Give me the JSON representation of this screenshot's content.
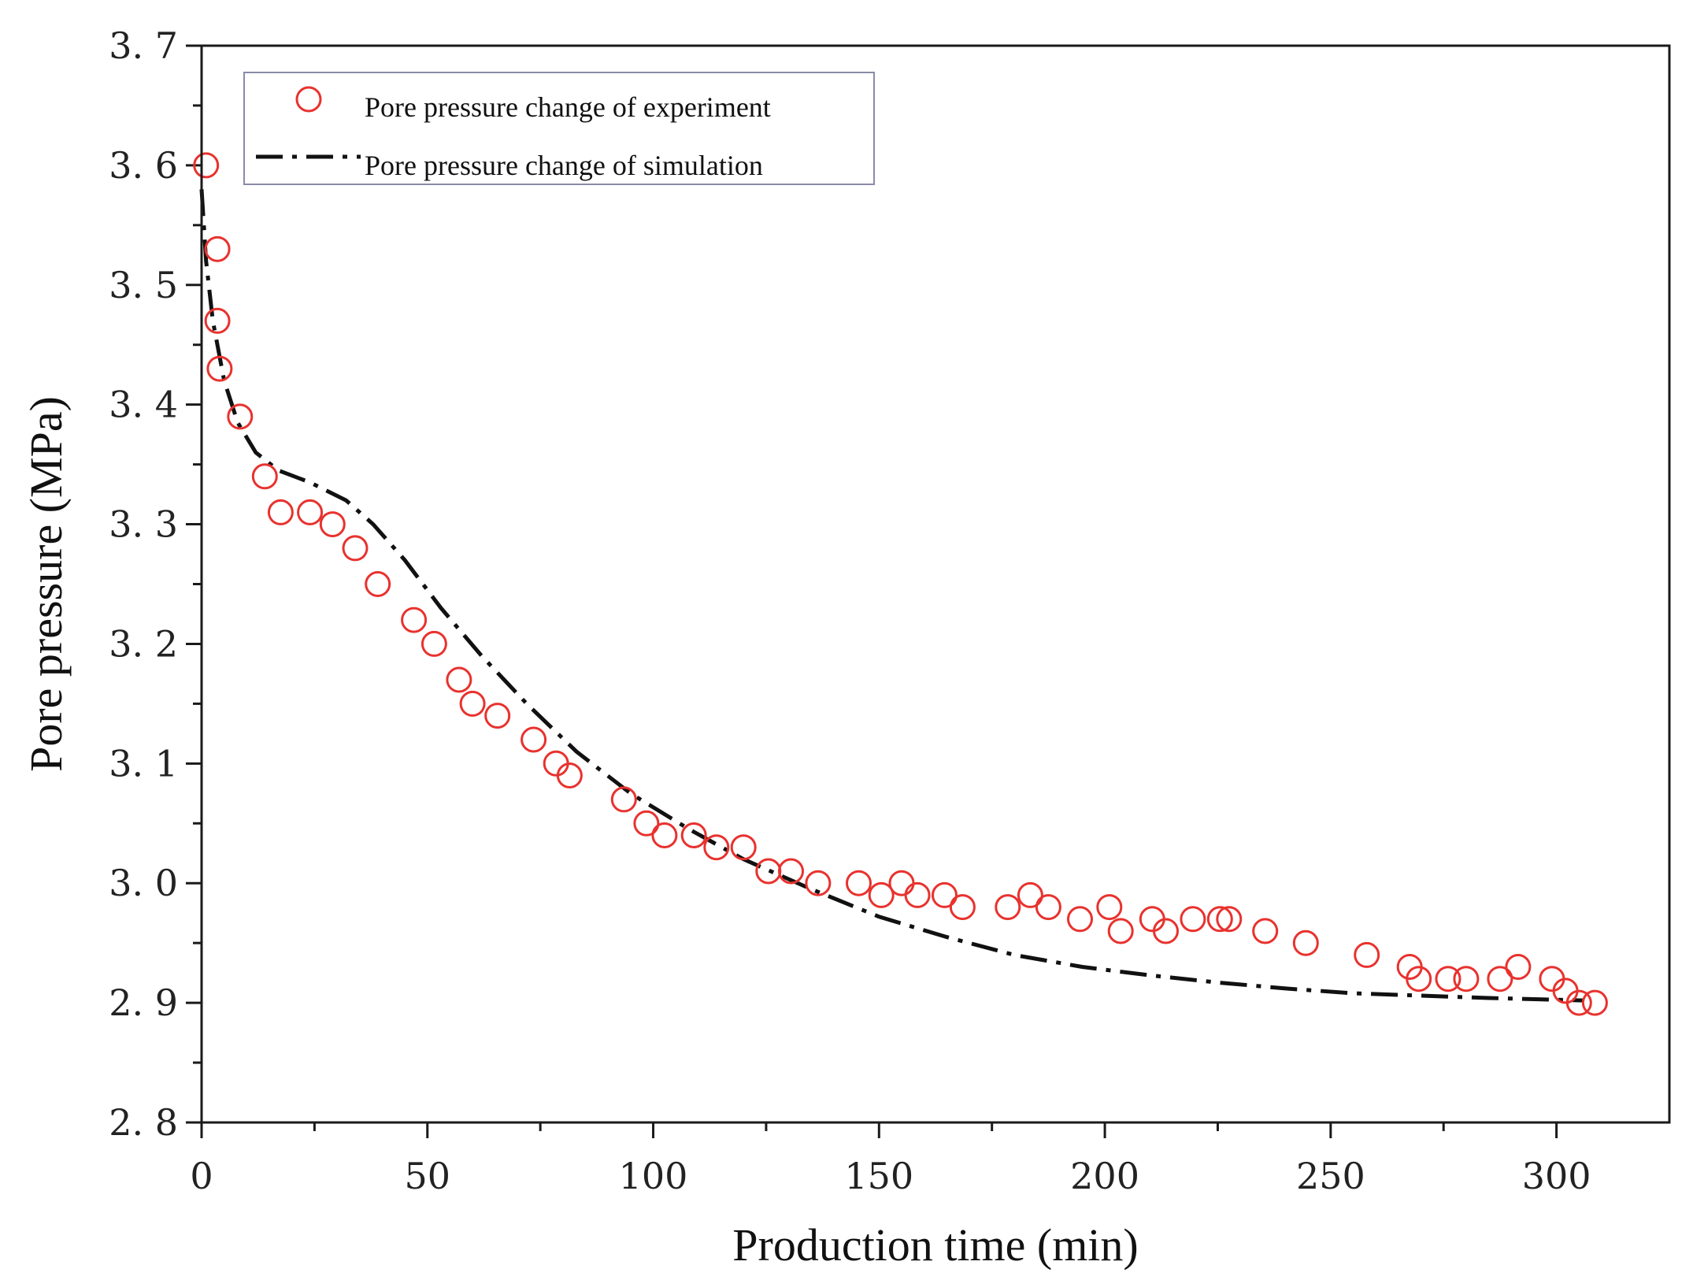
{
  "chart_data": {
    "type": "scatter",
    "title": "",
    "xlabel": "Production time (min)",
    "ylabel": "Pore pressure (MPa)",
    "xlim": [
      0,
      325
    ],
    "ylim": [
      2.8,
      3.7
    ],
    "xticks": [
      0,
      50,
      100,
      150,
      200,
      250,
      300
    ],
    "xtick_labels": [
      "0",
      "50",
      "100",
      "150",
      "200",
      "250",
      "300"
    ],
    "yticks": [
      2.8,
      2.9,
      3.0,
      3.1,
      3.2,
      3.3,
      3.4,
      3.5,
      3.6,
      3.7
    ],
    "ytick_labels": [
      "2. 8",
      "2. 9",
      "3. 0",
      "3. 1",
      "3. 2",
      "3. 3",
      "3. 4",
      "3. 5",
      "3. 6",
      "3. 7"
    ],
    "legend_position": "top-left",
    "colors": {
      "experiment": "#e8322e",
      "simulation": "#111111",
      "legend_border": "#8a8aa8"
    },
    "series": [
      {
        "name": "Pore pressure change of experiment",
        "style": "open-circle",
        "points": [
          [
            1,
            3.6
          ],
          [
            3.5,
            3.53
          ],
          [
            3.5,
            3.47
          ],
          [
            4,
            3.43
          ],
          [
            8.5,
            3.39
          ],
          [
            14,
            3.34
          ],
          [
            17.5,
            3.31
          ],
          [
            24,
            3.31
          ],
          [
            29,
            3.3
          ],
          [
            34,
            3.28
          ],
          [
            39,
            3.25
          ],
          [
            47,
            3.22
          ],
          [
            51.5,
            3.2
          ],
          [
            57,
            3.17
          ],
          [
            60,
            3.15
          ],
          [
            65.5,
            3.14
          ],
          [
            73.5,
            3.12
          ],
          [
            78.5,
            3.1
          ],
          [
            81.5,
            3.09
          ],
          [
            93.5,
            3.07
          ],
          [
            98.5,
            3.05
          ],
          [
            102.5,
            3.04
          ],
          [
            109,
            3.04
          ],
          [
            114,
            3.03
          ],
          [
            120,
            3.03
          ],
          [
            125.5,
            3.01
          ],
          [
            130.5,
            3.01
          ],
          [
            136.5,
            3.0
          ],
          [
            145.5,
            3.0
          ],
          [
            150.5,
            2.99
          ],
          [
            155,
            3.0
          ],
          [
            158.5,
            2.99
          ],
          [
            164.5,
            2.99
          ],
          [
            168.5,
            2.98
          ],
          [
            178.5,
            2.98
          ],
          [
            183.5,
            2.99
          ],
          [
            187.5,
            2.98
          ],
          [
            194.5,
            2.97
          ],
          [
            201,
            2.98
          ],
          [
            203.5,
            2.96
          ],
          [
            210.5,
            2.97
          ],
          [
            213.5,
            2.96
          ],
          [
            219.5,
            2.97
          ],
          [
            225.5,
            2.97
          ],
          [
            227.5,
            2.97
          ],
          [
            235.5,
            2.96
          ],
          [
            244.5,
            2.95
          ],
          [
            258,
            2.94
          ],
          [
            267.5,
            2.93
          ],
          [
            269.5,
            2.92
          ],
          [
            276,
            2.92
          ],
          [
            280,
            2.92
          ],
          [
            287.5,
            2.92
          ],
          [
            291.5,
            2.93
          ],
          [
            299,
            2.92
          ],
          [
            302,
            2.91
          ],
          [
            305,
            2.9
          ],
          [
            308.5,
            2.9
          ]
        ]
      },
      {
        "name": "Pore pressure change of simulation",
        "style": "dash-dot",
        "points": [
          [
            0,
            3.58
          ],
          [
            1,
            3.52
          ],
          [
            2.5,
            3.47
          ],
          [
            5,
            3.42
          ],
          [
            8,
            3.385
          ],
          [
            12,
            3.36
          ],
          [
            17,
            3.345
          ],
          [
            24,
            3.335
          ],
          [
            32,
            3.32
          ],
          [
            38,
            3.3
          ],
          [
            45,
            3.27
          ],
          [
            53,
            3.23
          ],
          [
            62,
            3.19
          ],
          [
            72,
            3.15
          ],
          [
            83,
            3.11
          ],
          [
            95,
            3.075
          ],
          [
            108,
            3.045
          ],
          [
            120,
            3.02
          ],
          [
            135,
            2.995
          ],
          [
            150,
            2.972
          ],
          [
            165,
            2.955
          ],
          [
            180,
            2.94
          ],
          [
            195,
            2.93
          ],
          [
            210,
            2.923
          ],
          [
            225,
            2.917
          ],
          [
            240,
            2.912
          ],
          [
            255,
            2.908
          ],
          [
            270,
            2.906
          ],
          [
            285,
            2.904
          ],
          [
            296,
            2.903
          ],
          [
            306,
            2.902
          ]
        ]
      }
    ]
  }
}
